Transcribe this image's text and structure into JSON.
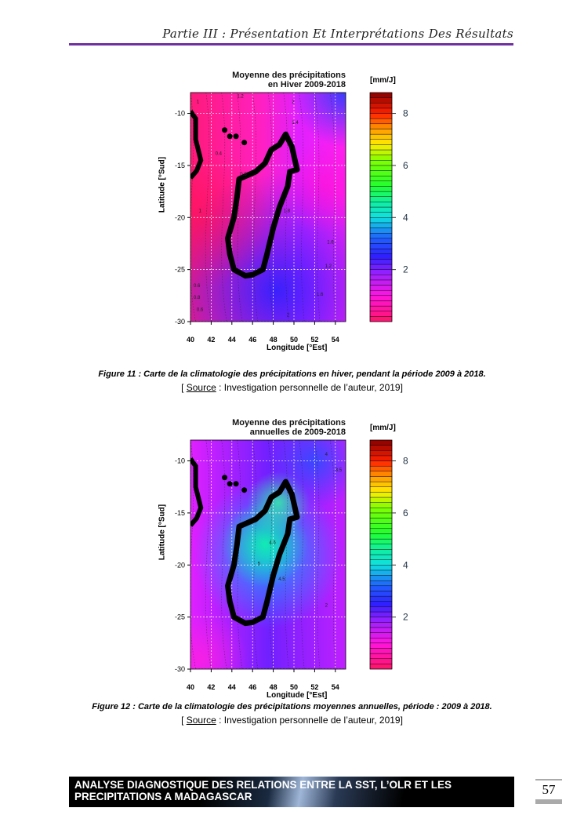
{
  "header": {
    "title": "Partie III : Présentation Et Interprétations Des Résultats"
  },
  "figures": [
    {
      "id": "hiver",
      "title_line1": "Moyenne des précipitations",
      "title_line2": "en Hiver 2009-2018",
      "unit": "[mm/J]",
      "ylabel": "Latitude [°Sud]",
      "xlabel": "Longitude [°Est]",
      "yticks": [
        "-10",
        "-15",
        "-20",
        "-25",
        "-30"
      ],
      "xticks": [
        "40",
        "42",
        "44",
        "46",
        "48",
        "50",
        "52",
        "54"
      ],
      "colorbar_ticks": [
        "2",
        "4",
        "6",
        "8"
      ],
      "contour_labels": [
        "1",
        "1.2",
        "2",
        "1.4",
        "0.4",
        "0.6",
        "0.8",
        "1.6",
        "0.6",
        "0.8",
        "1",
        "1.8",
        "1.2",
        "1.6",
        "2"
      ],
      "caption_label": "Figure 11 :",
      "caption_text": " Carte de la climatologie des précipitations en hiver, pendant la période 2009 à 2018.",
      "source_open": "[ ",
      "source_word": "Source",
      "source_rest": " : Investigation personnelle de l’auteur, 2019]"
    },
    {
      "id": "annuelle",
      "title_line1": "Moyenne des précipitations",
      "title_line2": "annuelles de 2009-2018",
      "unit": "[mm/J]",
      "ylabel": "Latitude [°Sud]",
      "xlabel": "Longitude [°Est]",
      "yticks": [
        "-10",
        "-15",
        "-20",
        "-25",
        "-30"
      ],
      "xticks": [
        "40",
        "42",
        "44",
        "46",
        "48",
        "50",
        "52",
        "54"
      ],
      "colorbar_ticks": [
        "2",
        "4",
        "6",
        "8"
      ],
      "contour_labels": [
        "4",
        "3.5",
        "4.5",
        "5",
        "4.5",
        "2"
      ],
      "caption_label": "Figure 12 :",
      "caption_text": " Carte de la climatologie des précipitations moyennes annuelles, période : 2009 à 2018.",
      "source_open": "[ ",
      "source_word": "Source",
      "source_rest": " : Investigation personnelle de l’auteur, 2019]"
    }
  ],
  "chart_data": [
    {
      "type": "heatmap",
      "title": "Moyenne des précipitations en Hiver 2009-2018",
      "xlabel": "Longitude [°Est]",
      "ylabel": "Latitude [°Sud]",
      "xlim": [
        40,
        55
      ],
      "ylim": [
        -30,
        -8
      ],
      "colorbar": {
        "label": "[mm/J]",
        "range": [
          0,
          8.8
        ],
        "ticks": [
          2,
          4,
          6,
          8
        ]
      }
    },
    {
      "type": "heatmap",
      "title": "Moyenne des précipitations annuelles de 2009-2018",
      "xlabel": "Longitude [°Est]",
      "ylabel": "Latitude [°Sud]",
      "xlim": [
        40,
        55
      ],
      "ylim": [
        -30,
        -8
      ],
      "colorbar": {
        "label": "[mm/J]",
        "range": [
          0,
          8.8
        ],
        "ticks": [
          2,
          4,
          6,
          8
        ]
      }
    }
  ],
  "footer": {
    "line1": "ANALYSE DIAGNOSTIQUE DES RELATIONS ENTRE LA SST, L’OLR ET LES",
    "line2": "PRECIPITATIONS A MADAGASCAR",
    "page": "57"
  }
}
